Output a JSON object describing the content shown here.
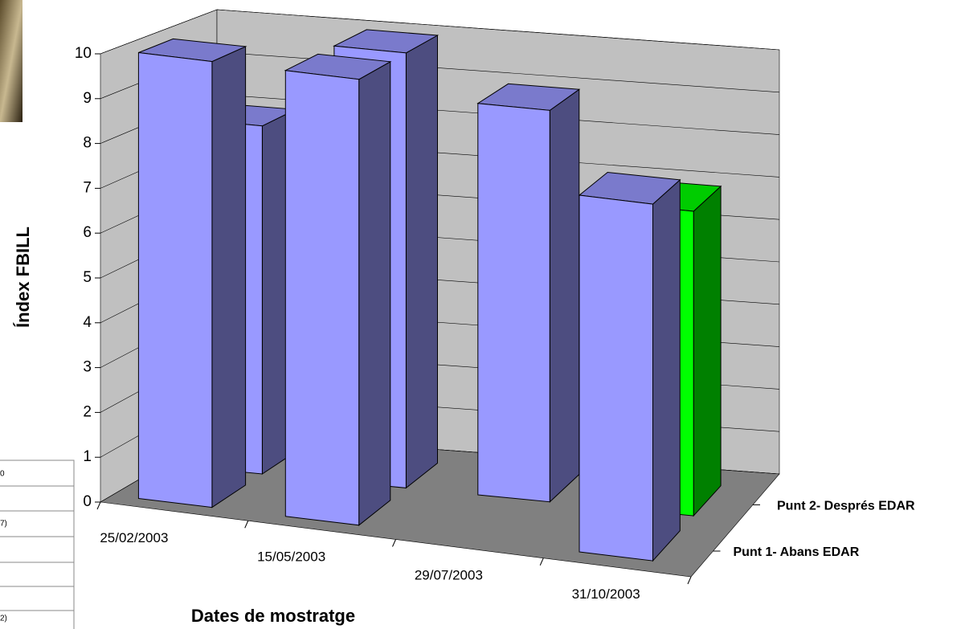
{
  "chart_data": {
    "type": "bar3d",
    "y_label": "Índex FBILL",
    "x_label": "Dates de mostratge",
    "categories": [
      "25/02/2003",
      "15/05/2003",
      "29/07/2003",
      "31/10/2003"
    ],
    "series": [
      {
        "name": "Punt 1- Abans EDAR",
        "color": "#9999ff",
        "values": [
          10,
          10,
          null,
          8
        ]
      },
      {
        "name": "Punt 2- Després EDAR",
        "color": "#9999ff",
        "colors": [
          "#9999ff",
          "#9999ff",
          "#9999ff",
          "#00ff00"
        ],
        "values": [
          8,
          10,
          9,
          7
        ]
      }
    ],
    "ylim": [
      0,
      10
    ],
    "yticks": [
      0,
      1,
      2,
      3,
      4,
      5,
      6,
      7,
      8,
      9,
      10
    ],
    "grid": true
  },
  "side_fragments": [
    "0",
    "7)",
    "2)"
  ]
}
